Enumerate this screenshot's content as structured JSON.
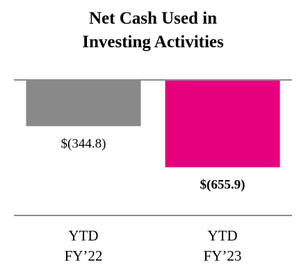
{
  "chart_data": {
    "type": "bar",
    "title_lines": [
      "Net Cash Used in",
      "Investing Activities"
    ],
    "categories": [
      {
        "line1": "YTD",
        "line2": "FY’22"
      },
      {
        "line1": "YTD",
        "line2": "FY’23"
      }
    ],
    "values": [
      -344.8,
      -655.9
    ],
    "value_labels": [
      "$(344.8)",
      "$(655.9)"
    ],
    "value_label_bold": [
      false,
      true
    ],
    "colors": [
      "#898989",
      "#e6007e"
    ],
    "ylim": [
      -700,
      0
    ]
  }
}
